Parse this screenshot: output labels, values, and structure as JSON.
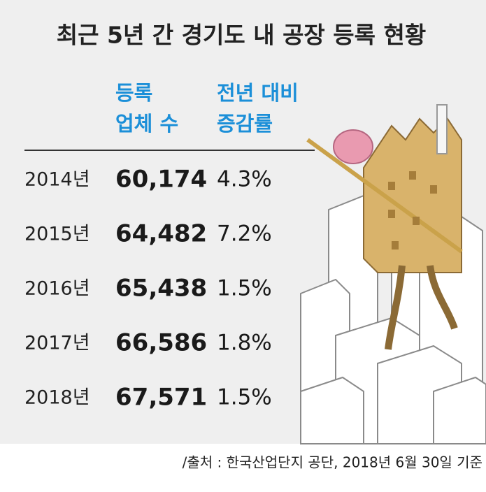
{
  "title": "최근 5년 간 경기도 내  공장 등록 현황",
  "table": {
    "headers": [
      [
        "등록",
        "업체 수"
      ],
      [
        "전년 대비",
        "증감률"
      ]
    ],
    "rows": [
      [
        "2014년",
        "60,174",
        "4.3%"
      ],
      [
        "2015년",
        "64,482",
        "7.2%"
      ],
      [
        "2016년",
        "65,438",
        "1.5%"
      ],
      [
        "2017년",
        "66,586",
        "1.8%"
      ],
      [
        "2018년",
        "67,571",
        "1.5%"
      ]
    ]
  },
  "source": "/출처 : 한국산업단지 공단, 2018년 6월 30일 기준"
}
